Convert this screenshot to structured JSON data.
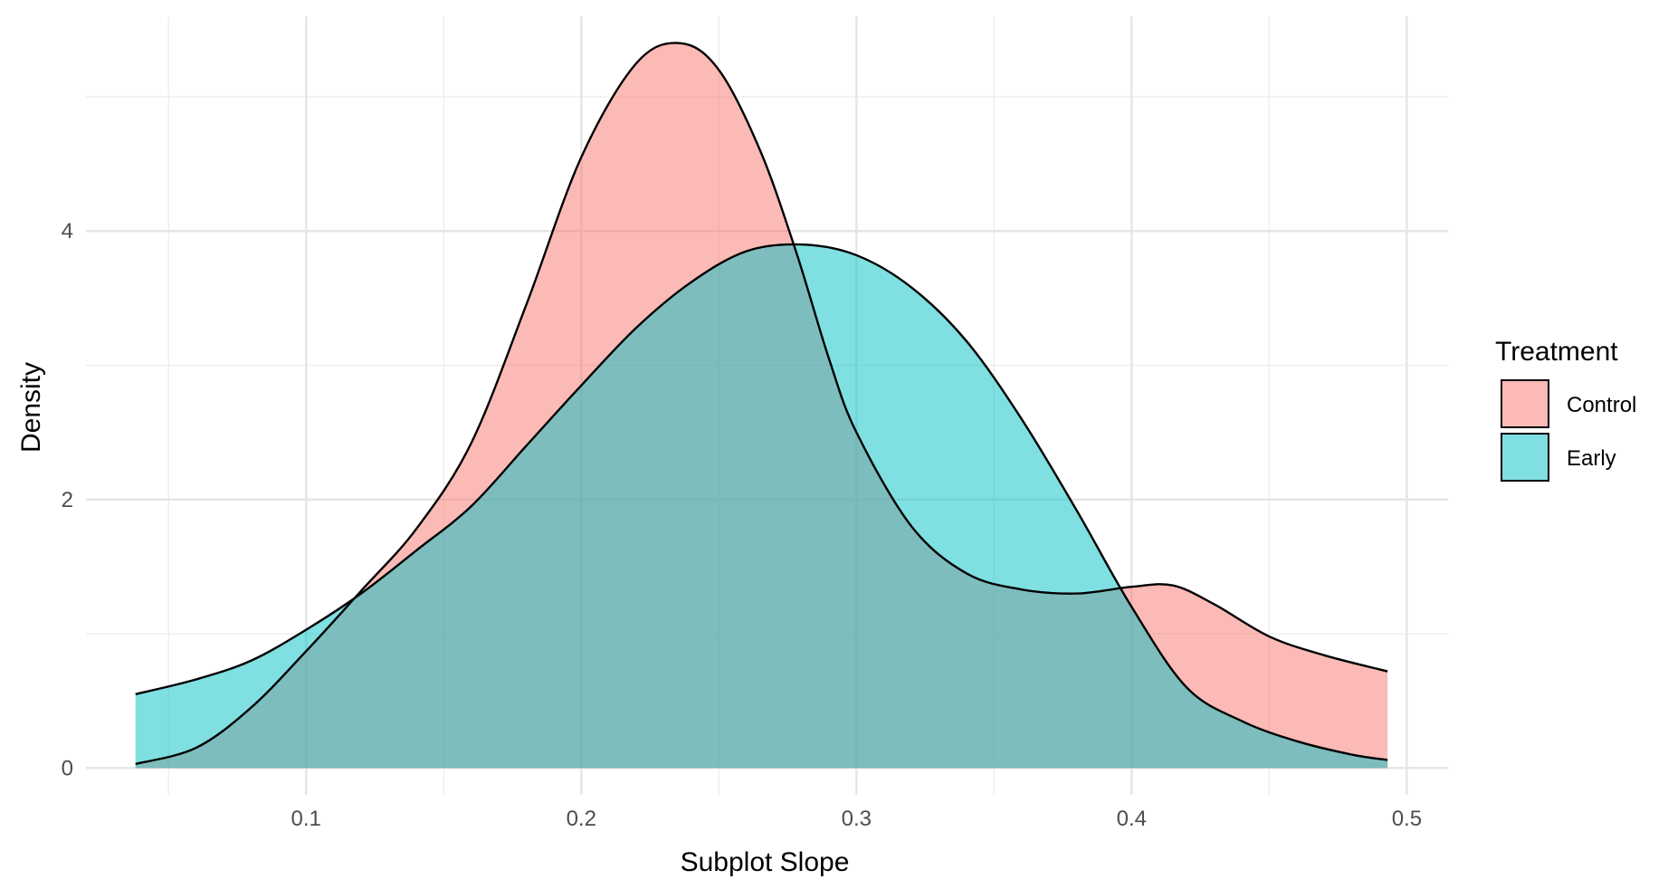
{
  "chart_data": {
    "type": "area",
    "xlabel": "Subplot Slope",
    "ylabel": "Density",
    "xlim": [
      0.02,
      0.515
    ],
    "ylim": [
      -0.2,
      5.6
    ],
    "x_ticks": [
      0.1,
      0.2,
      0.3,
      0.4,
      0.5
    ],
    "x_tick_labels": [
      "0.1",
      "0.2",
      "0.3",
      "0.4",
      "0.5"
    ],
    "y_ticks": [
      0,
      2,
      4
    ],
    "y_tick_labels": [
      "0",
      "2",
      "4"
    ],
    "grid": true,
    "legend": {
      "title": "Treatment",
      "position": "right",
      "entries": [
        {
          "label": "Control",
          "color": "#F8766D"
        },
        {
          "label": "Early",
          "color": "#00BFC4"
        }
      ]
    },
    "fill_alpha": 0.5,
    "series": [
      {
        "name": "Control",
        "color": "#F8766D",
        "x": [
          0.038,
          0.06,
          0.08,
          0.1,
          0.12,
          0.14,
          0.16,
          0.18,
          0.2,
          0.22,
          0.236,
          0.25,
          0.265,
          0.278,
          0.29,
          0.3,
          0.32,
          0.34,
          0.36,
          0.38,
          0.4,
          0.415,
          0.43,
          0.45,
          0.47,
          0.493
        ],
        "y": [
          0.03,
          0.15,
          0.45,
          0.87,
          1.32,
          1.78,
          2.42,
          3.45,
          4.55,
          5.25,
          5.4,
          5.2,
          4.6,
          3.85,
          3.05,
          2.5,
          1.8,
          1.45,
          1.33,
          1.3,
          1.35,
          1.36,
          1.22,
          0.98,
          0.84,
          0.72
        ]
      },
      {
        "name": "Early",
        "color": "#00BFC4",
        "x": [
          0.038,
          0.06,
          0.08,
          0.1,
          0.12,
          0.14,
          0.16,
          0.18,
          0.2,
          0.22,
          0.24,
          0.26,
          0.28,
          0.3,
          0.32,
          0.34,
          0.36,
          0.38,
          0.4,
          0.42,
          0.44,
          0.46,
          0.48,
          0.493
        ],
        "y": [
          0.55,
          0.66,
          0.8,
          1.03,
          1.3,
          1.62,
          1.95,
          2.4,
          2.85,
          3.28,
          3.62,
          3.85,
          3.9,
          3.82,
          3.58,
          3.18,
          2.6,
          1.92,
          1.2,
          0.6,
          0.35,
          0.2,
          0.1,
          0.06
        ]
      }
    ]
  }
}
